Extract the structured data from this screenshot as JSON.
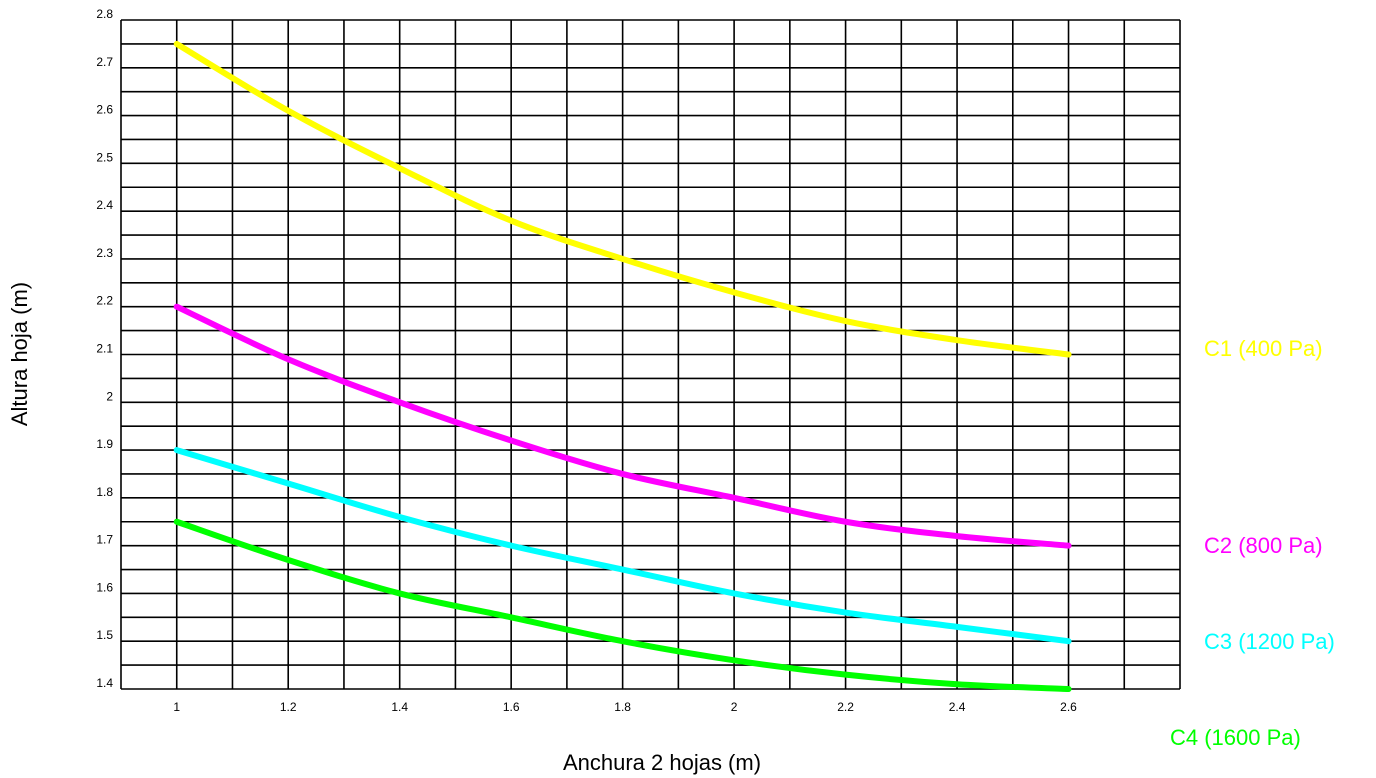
{
  "chart_data": {
    "type": "line",
    "title": "",
    "xlabel": "Anchura 2 hojas (m)",
    "ylabel": "Altura hoja (m)",
    "xlim": [
      0.9,
      2.8
    ],
    "ylim": [
      1.4,
      2.8
    ],
    "x_ticks": [
      1,
      1.2,
      1.4,
      1.6,
      1.8,
      2,
      2.2,
      2.4,
      2.6
    ],
    "x_tick_labels": [
      "1",
      "1.2",
      "1.4",
      "1.6",
      "1.8",
      "2",
      "2.2",
      "2.4",
      "2.6"
    ],
    "y_ticks": [
      1.4,
      1.5,
      1.6,
      1.7,
      1.8,
      1.9,
      2,
      2.1,
      2.2,
      2.3,
      2.4,
      2.5,
      2.6,
      2.7,
      2.8
    ],
    "y_tick_labels": [
      "1.4",
      "1.5",
      "1.6",
      "1.7",
      "1.8",
      "1.9",
      "2",
      "2.1",
      "2.2",
      "2.3",
      "2.4",
      "2.5",
      "2.6",
      "2.7",
      "2.8"
    ],
    "grid": true,
    "grid_x_step": 0.1,
    "grid_y_step": 0.05,
    "legend_placement": "right",
    "x": [
      1,
      1.2,
      1.4,
      1.6,
      1.8,
      2,
      2.2,
      2.4,
      2.6
    ],
    "series": [
      {
        "name": "C1 (400 Pa)",
        "color": "#ffff00",
        "values": [
          2.75,
          2.61,
          2.49,
          2.38,
          2.3,
          2.23,
          2.17,
          2.13,
          2.1
        ]
      },
      {
        "name": "C2 (800 Pa)",
        "color": "#ff00ff",
        "values": [
          2.2,
          2.09,
          2.0,
          1.92,
          1.85,
          1.8,
          1.75,
          1.72,
          1.7
        ]
      },
      {
        "name": "C3 (1200 Pa)",
        "color": "#00ffff",
        "values": [
          1.9,
          1.83,
          1.76,
          1.7,
          1.65,
          1.6,
          1.56,
          1.53,
          1.5
        ]
      },
      {
        "name": "C4 (1600 Pa)",
        "color": "#00ff00",
        "values": [
          1.75,
          1.67,
          1.6,
          1.55,
          1.5,
          1.46,
          1.43,
          1.41,
          1.4
        ]
      }
    ]
  }
}
